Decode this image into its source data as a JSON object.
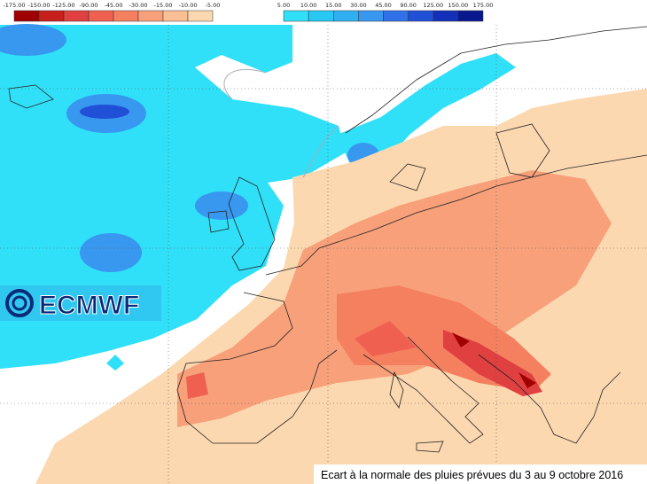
{
  "legend": {
    "negative": {
      "labels": [
        "-175.00",
        "-150.00",
        "-125.00",
        "-90.00",
        "-45.00",
        "-30.00",
        "-15.00",
        "-10.00",
        "-5.00"
      ],
      "colors": [
        "#a00000",
        "#c81e1e",
        "#e04040",
        "#f06050",
        "#f58060",
        "#f8a07a",
        "#fbbf95",
        "#fcd8b0"
      ]
    },
    "positive": {
      "labels": [
        "5.00",
        "10.00",
        "15.00",
        "30.00",
        "45.00",
        "90.00",
        "125.00",
        "150.00",
        "175.00"
      ],
      "colors": [
        "#30e0f8",
        "#28c8f4",
        "#30b0f0",
        "#3898f0",
        "#3070e8",
        "#2050d8",
        "#1430b8",
        "#0a1890"
      ]
    }
  },
  "logo": "ECMWF",
  "caption": "Ecart à la normale des pluies prévues du 3 au 9 octobre 2016"
}
